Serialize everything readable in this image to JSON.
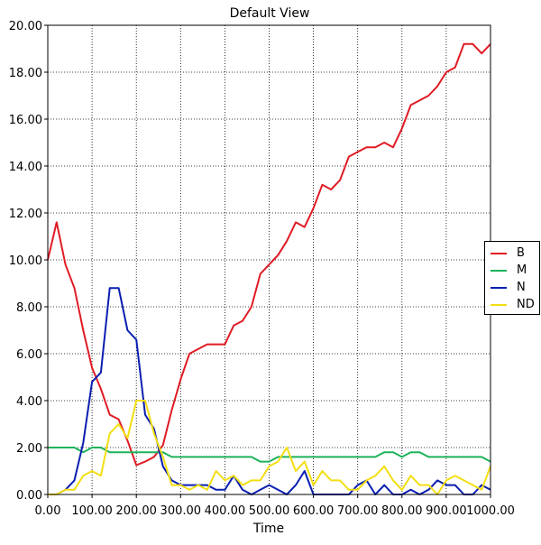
{
  "chart_data": {
    "type": "line",
    "title": "Default View",
    "xlabel": "Time",
    "ylabel": "",
    "xlim": [
      0,
      1000
    ],
    "ylim": [
      0,
      20
    ],
    "grid": true,
    "legend_position": "right",
    "x_ticks": [
      "0.00",
      "100.00",
      "200.00",
      "300.00",
      "400.00",
      "500.00",
      "600.00",
      "700.00",
      "800.00",
      "900.00",
      "1000.00"
    ],
    "y_ticks": [
      "0.00",
      "2.00",
      "4.00",
      "6.00",
      "8.00",
      "10.00",
      "12.00",
      "14.00",
      "16.00",
      "18.00",
      "20.00"
    ],
    "x": [
      0,
      20,
      40,
      60,
      80,
      100,
      120,
      140,
      160,
      180,
      200,
      220,
      240,
      260,
      280,
      300,
      320,
      340,
      360,
      380,
      400,
      420,
      440,
      460,
      480,
      500,
      520,
      540,
      560,
      580,
      600,
      620,
      640,
      660,
      680,
      700,
      720,
      740,
      760,
      780,
      800,
      820,
      840,
      860,
      880,
      900,
      920,
      940,
      960,
      980,
      1000
    ],
    "series": [
      {
        "name": "B",
        "color": "#e01b24",
        "values": [
          10.0,
          11.6,
          9.8,
          8.8,
          7.0,
          5.4,
          4.5,
          3.4,
          3.2,
          2.3,
          1.25,
          1.4,
          1.6,
          2.1,
          3.6,
          4.9,
          6.0,
          6.2,
          6.4,
          6.4,
          6.4,
          7.2,
          7.4,
          8.0,
          9.4,
          9.8,
          10.2,
          10.8,
          11.6,
          11.4,
          12.2,
          13.2,
          13.0,
          13.4,
          14.4,
          14.6,
          14.8,
          14.8,
          15.0,
          14.8,
          15.6,
          16.6,
          16.8,
          17.0,
          17.4,
          18.0,
          18.2,
          19.2,
          19.2,
          18.8,
          19.2
        ]
      },
      {
        "name": "M",
        "color": "#1db35a",
        "values": [
          2.0,
          2.0,
          2.0,
          2.0,
          1.8,
          2.0,
          2.0,
          1.8,
          1.8,
          1.8,
          1.8,
          1.8,
          1.8,
          1.8,
          1.6,
          1.6,
          1.6,
          1.6,
          1.6,
          1.6,
          1.6,
          1.6,
          1.6,
          1.6,
          1.4,
          1.4,
          1.6,
          1.6,
          1.6,
          1.6,
          1.6,
          1.6,
          1.6,
          1.6,
          1.6,
          1.6,
          1.6,
          1.6,
          1.8,
          1.8,
          1.6,
          1.8,
          1.8,
          1.6,
          1.6,
          1.6,
          1.6,
          1.6,
          1.6,
          1.6,
          1.4
        ]
      },
      {
        "name": "N",
        "color": "#0a1eb0",
        "values": [
          0.0,
          0.0,
          0.2,
          0.6,
          2.2,
          4.8,
          5.2,
          8.8,
          8.8,
          7.0,
          6.6,
          3.4,
          2.8,
          1.2,
          0.6,
          0.4,
          0.4,
          0.4,
          0.4,
          0.2,
          0.2,
          0.8,
          0.2,
          0.0,
          0.2,
          0.4,
          0.2,
          0.0,
          0.4,
          1.0,
          0.0,
          0.0,
          0.0,
          0.0,
          0.0,
          0.4,
          0.6,
          0.0,
          0.4,
          0.0,
          0.0,
          0.2,
          0.0,
          0.2,
          0.6,
          0.4,
          0.4,
          0.0,
          0.0,
          0.4,
          0.2
        ]
      },
      {
        "name": "ND",
        "color": "#f3de12",
        "values": [
          0.0,
          0.0,
          0.2,
          0.2,
          0.8,
          1.0,
          0.8,
          2.6,
          3.0,
          2.4,
          4.0,
          4.0,
          2.6,
          1.6,
          0.4,
          0.4,
          0.2,
          0.4,
          0.2,
          1.0,
          0.6,
          0.8,
          0.4,
          0.6,
          0.6,
          1.2,
          1.4,
          2.0,
          1.0,
          1.4,
          0.4,
          1.0,
          0.6,
          0.6,
          0.2,
          0.2,
          0.6,
          0.8,
          1.2,
          0.6,
          0.2,
          0.8,
          0.4,
          0.4,
          0.0,
          0.6,
          0.8,
          0.6,
          0.4,
          0.2,
          1.2
        ]
      }
    ]
  }
}
